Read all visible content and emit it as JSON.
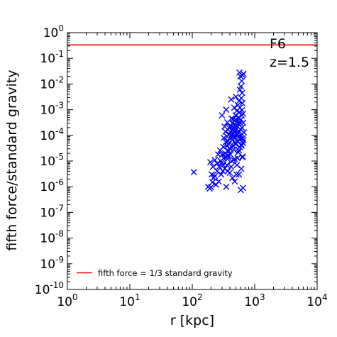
{
  "chart_data": {
    "type": "scatter",
    "title": "",
    "xlabel": "r [kpc]",
    "ylabel": "fifth force/standard gravity",
    "xscale": "log",
    "yscale": "log",
    "xlim": [
      1,
      10000
    ],
    "ylim": [
      1e-10,
      1
    ],
    "x_ticks": [
      {
        "base": "10",
        "exp": "0",
        "value": 1
      },
      {
        "base": "10",
        "exp": "1",
        "value": 10
      },
      {
        "base": "10",
        "exp": "2",
        "value": 100
      },
      {
        "base": "10",
        "exp": "3",
        "value": 1000
      },
      {
        "base": "10",
        "exp": "4",
        "value": 10000
      }
    ],
    "y_ticks": [
      {
        "base": "10",
        "exp": "0",
        "value": 1
      },
      {
        "base": "10",
        "exp": "-1",
        "value": 0.1
      },
      {
        "base": "10",
        "exp": "-2",
        "value": 0.01
      },
      {
        "base": "10",
        "exp": "-3",
        "value": 0.001
      },
      {
        "base": "10",
        "exp": "-4",
        "value": 0.0001
      },
      {
        "base": "10",
        "exp": "-5",
        "value": 1e-05
      },
      {
        "base": "10",
        "exp": "-6",
        "value": 1e-06
      },
      {
        "base": "10",
        "exp": "-7",
        "value": 1e-07
      },
      {
        "base": "10",
        "exp": "-8",
        "value": 1e-08
      },
      {
        "base": "10",
        "exp": "-9",
        "value": 1e-09
      },
      {
        "base": "10",
        "exp": "-10",
        "value": 1e-10
      }
    ],
    "annotations": [
      "F6",
      "z=1.5"
    ],
    "legend": {
      "placement": "lower-center",
      "entries": [
        "fifth force = 1/3 standard gravity"
      ]
    },
    "hline": {
      "y": 0.3333,
      "label": "fifth force = 1/3 standard gravity",
      "color": "#ff0000"
    },
    "series": [
      {
        "marker": "x",
        "color": "#0000ff",
        "points": [
          [
            106,
            3.7e-06
          ],
          [
            180,
            1e-06
          ],
          [
            190,
            8.5e-07
          ],
          [
            200,
            9.5e-07
          ],
          [
            210,
            1.5e-06
          ],
          [
            195,
            9e-06
          ],
          [
            205,
            3e-06
          ],
          [
            220,
            2.2e-06
          ],
          [
            240,
            1.2e-06
          ],
          [
            265,
            1.6e-06
          ],
          [
            215,
            6e-06
          ],
          [
            230,
            1.1e-05
          ],
          [
            250,
            8e-06
          ],
          [
            270,
            6e-06
          ],
          [
            290,
            3e-06
          ],
          [
            300,
            9e-06
          ],
          [
            310,
            4e-06
          ],
          [
            320,
            1.3e-05
          ],
          [
            335,
            2e-05
          ],
          [
            350,
            1e-06
          ],
          [
            330,
            5e-06
          ],
          [
            360,
            7e-06
          ],
          [
            370,
            1.6e-05
          ],
          [
            380,
            2.5e-05
          ],
          [
            395,
            3.2e-05
          ],
          [
            410,
            1.8e-05
          ],
          [
            420,
            6e-06
          ],
          [
            430,
            1e-05
          ],
          [
            445,
            4e-05
          ],
          [
            460,
            2.8e-05
          ],
          [
            470,
            5.5e-05
          ],
          [
            480,
            1.2e-05
          ],
          [
            490,
            8e-05
          ],
          [
            500,
            4.5e-05
          ],
          [
            510,
            3e-06
          ],
          [
            520,
            0.00011
          ],
          [
            530,
            6e-05
          ],
          [
            545,
            2.2e-05
          ],
          [
            555,
            9e-05
          ],
          [
            565,
            0.00014
          ],
          [
            575,
            3.5e-05
          ],
          [
            585,
            7e-05
          ],
          [
            600,
            0.0001
          ],
          [
            615,
            4e-05
          ],
          [
            625,
            0.0002
          ],
          [
            640,
            1.5e-05
          ],
          [
            655,
            5e-05
          ],
          [
            340,
            0.00014
          ],
          [
            360,
            9e-05
          ],
          [
            375,
            6e-05
          ],
          [
            390,
            0.00011
          ],
          [
            405,
            0.00022
          ],
          [
            415,
            8e-05
          ],
          [
            425,
            0.00045
          ],
          [
            435,
            0.00016
          ],
          [
            440,
            0.0003
          ],
          [
            455,
            0.00012
          ],
          [
            465,
            0.0002
          ],
          [
            475,
            0.00038
          ],
          [
            485,
            0.00015
          ],
          [
            495,
            0.0006
          ],
          [
            505,
            0.00025
          ],
          [
            515,
            0.0009
          ],
          [
            525,
            0.00035
          ],
          [
            535,
            0.0015
          ],
          [
            550,
            0.0005
          ],
          [
            560,
            0.0022
          ],
          [
            570,
            0.0008
          ],
          [
            580,
            0.0012
          ],
          [
            595,
            0.0004
          ],
          [
            610,
            0.0028
          ],
          [
            620,
            0.0006
          ],
          [
            635,
            0.0018
          ],
          [
            650,
            0.0007
          ],
          [
            600,
            0.008
          ],
          [
            620,
            0.013
          ],
          [
            640,
            0.022
          ],
          [
            570,
            0.028
          ],
          [
            590,
            0.02
          ],
          [
            660,
            0.025
          ],
          [
            630,
            0.0045
          ],
          [
            580,
            0.006
          ],
          [
            600,
            7.5e-07
          ],
          [
            650,
            9e-07
          ],
          [
            560,
            3e-06
          ],
          [
            610,
            5e-06
          ],
          [
            640,
            1.4e-05
          ],
          [
            520,
            7e-06
          ],
          [
            480,
            1.6e-06
          ],
          [
            440,
            2.2e-06
          ],
          [
            400,
            3.5e-06
          ],
          [
            370,
            4e-06
          ],
          [
            300,
            1.8e-05
          ],
          [
            280,
            2.6e-05
          ],
          [
            260,
            1.8e-05
          ],
          [
            315,
            3.5e-05
          ],
          [
            355,
            4e-05
          ],
          [
            385,
            4.5e-05
          ],
          [
            415,
            0.00013
          ],
          [
            450,
            9e-05
          ],
          [
            500,
            0.00016
          ],
          [
            540,
            0.00028
          ],
          [
            590,
            0.0003
          ],
          [
            630,
            0.00011
          ],
          [
            660,
            6.5e-05
          ],
          [
            470,
            0.0012
          ],
          [
            350,
            0.001
          ],
          [
            420,
            0.0025
          ],
          [
            500,
            0.0032
          ],
          [
            300,
            0.0006
          ],
          [
            330,
            0.00022
          ],
          [
            440,
            7e-05
          ],
          [
            460,
            1.1e-05
          ],
          [
            380,
            2.4e-05
          ],
          [
            410,
            3e-05
          ],
          [
            490,
            5e-05
          ],
          [
            530,
            1.3e-05
          ],
          [
            560,
            2.6e-05
          ],
          [
            610,
            4.4e-05
          ],
          [
            640,
            7.6e-05
          ],
          [
            320,
            8e-05
          ],
          [
            345,
            5.5e-05
          ],
          [
            365,
            0.00032
          ],
          [
            395,
            0.00019
          ],
          [
            425,
            0.0001
          ],
          [
            450,
            0.00042
          ],
          [
            475,
            0.00026
          ],
          [
            505,
            0.00019
          ],
          [
            535,
            0.00011
          ],
          [
            565,
            0.00048
          ],
          [
            595,
            0.00017
          ],
          [
            625,
            0.00095
          ],
          [
            655,
            0.00031
          ],
          [
            670,
            0.00013
          ],
          [
            250,
            4e-06
          ],
          [
            230,
            2.6e-06
          ],
          [
            285,
            1e-05
          ],
          [
            310,
            7e-06
          ],
          [
            340,
            1.5e-05
          ],
          [
            365,
            1.2e-05
          ]
        ]
      }
    ]
  }
}
